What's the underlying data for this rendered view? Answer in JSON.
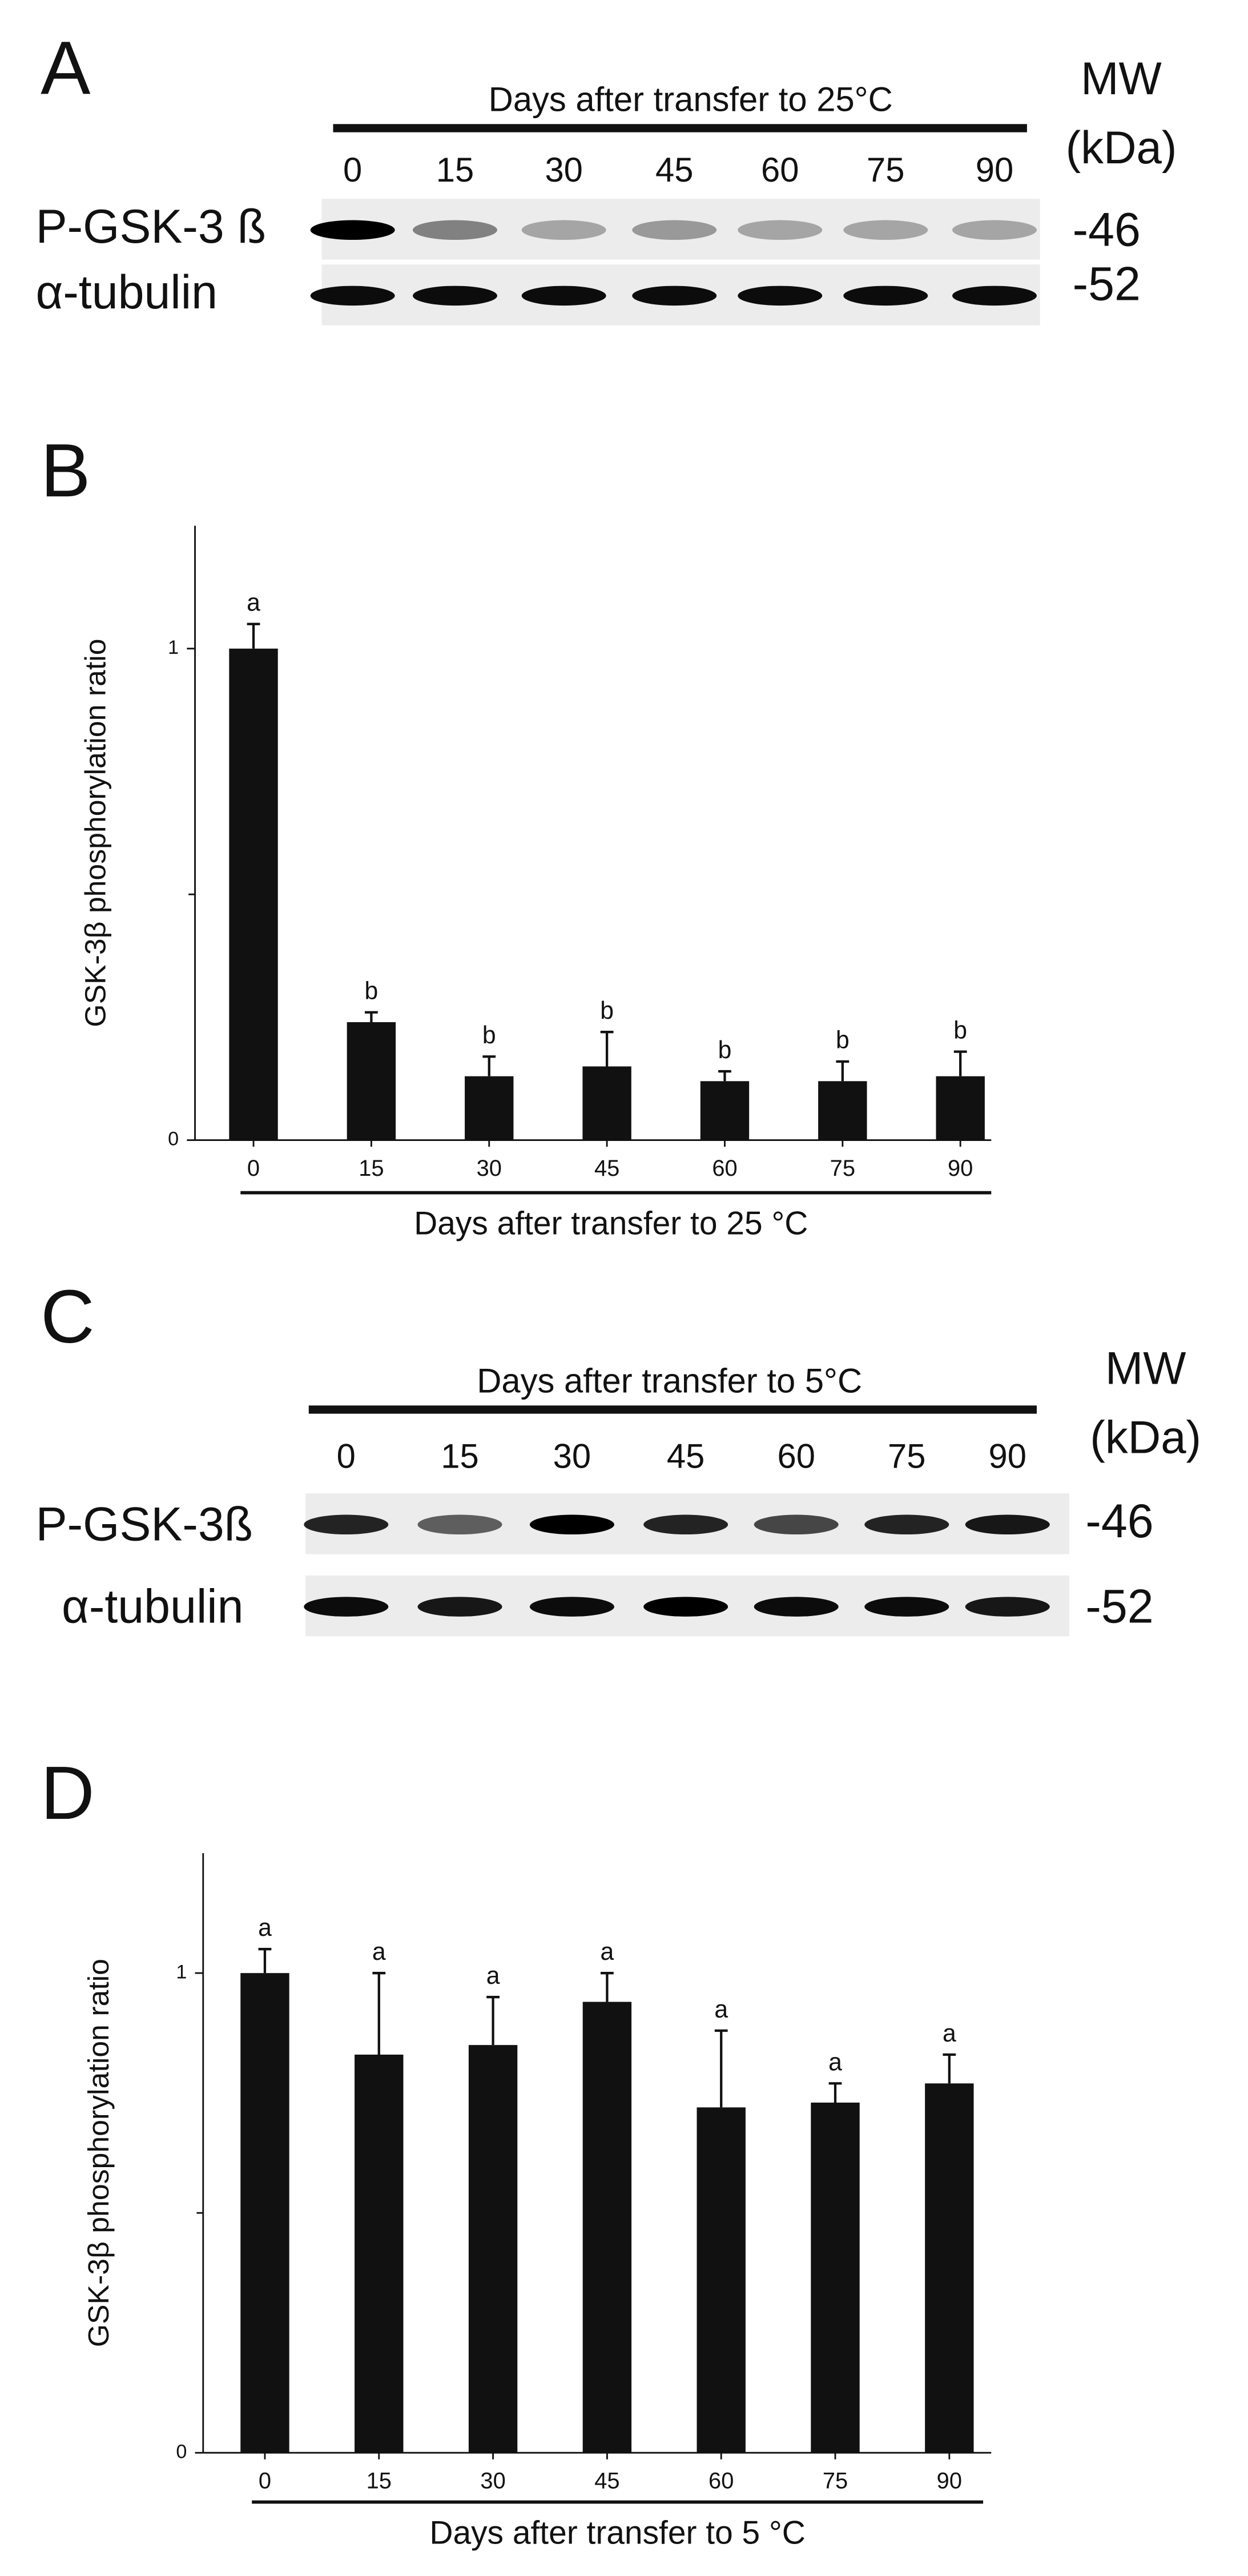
{
  "blots": [
    {
      "panel_label": "A",
      "title": "Days after transfer to 25°C",
      "lanes": [
        "0",
        "15",
        "30",
        "45",
        "60",
        "75",
        "90"
      ],
      "mw_header": [
        "MW",
        "(kDa)"
      ],
      "rows": [
        {
          "label": "P-GSK-3 ß",
          "mw": "-46"
        },
        {
          "label": "α-tubulin",
          "mw": "-52"
        }
      ]
    },
    {
      "panel_label": "C",
      "title": "Days after transfer to 5°C",
      "lanes": [
        "0",
        "15",
        "30",
        "45",
        "60",
        "75",
        "90"
      ],
      "mw_header": [
        "MW",
        "(kDa)"
      ],
      "rows": [
        {
          "label": "P-GSK-3ß",
          "mw": "-46"
        },
        {
          "label": "α-tubulin",
          "mw": "-52"
        }
      ]
    }
  ],
  "chart_data": [
    {
      "type": "bar",
      "panel_label": "B",
      "categories": [
        "0",
        "15",
        "30",
        "45",
        "60",
        "75",
        "90"
      ],
      "values": [
        1.0,
        0.24,
        0.13,
        0.15,
        0.12,
        0.12,
        0.13
      ],
      "errors": [
        0.05,
        0.02,
        0.04,
        0.07,
        0.02,
        0.04,
        0.05
      ],
      "annotations": [
        "a",
        "b",
        "b",
        "b",
        "b",
        "b",
        "b"
      ],
      "color": "#111111",
      "ylim": [
        0,
        1.25
      ],
      "yticks": [
        0,
        1
      ],
      "minor_yticks": [
        0.5
      ],
      "xlabel": "Days after transfer to 25 °C",
      "ylabel": "GSK-3β phosphorylation ratio"
    },
    {
      "type": "bar",
      "panel_label": "D",
      "categories": [
        "0",
        "15",
        "30",
        "45",
        "60",
        "75",
        "90"
      ],
      "values": [
        1.0,
        0.83,
        0.85,
        0.94,
        0.72,
        0.73,
        0.77
      ],
      "errors": [
        0.05,
        0.17,
        0.1,
        0.06,
        0.16,
        0.04,
        0.06
      ],
      "annotations": [
        "a",
        "a",
        "a",
        "a",
        "a",
        "a",
        "a"
      ],
      "color": "#111111",
      "ylim": [
        0,
        1.25
      ],
      "yticks": [
        0,
        1
      ],
      "minor_yticks": [
        0.5
      ],
      "xlabel": "Days after transfer to 5 °C",
      "ylabel": "GSK-3β phosphorylation ratio"
    }
  ]
}
